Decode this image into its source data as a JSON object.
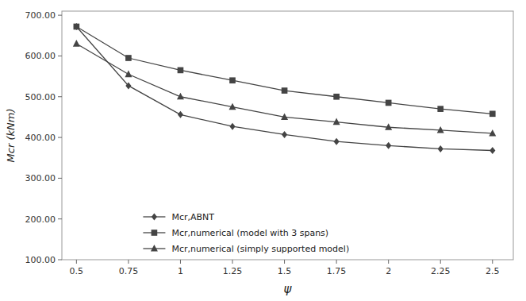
{
  "chart_data": {
    "type": "line",
    "xlabel": "ψ",
    "ylabel": "Mcr (kNm)",
    "x": [
      0.5,
      0.75,
      1.0,
      1.25,
      1.5,
      1.75,
      2.0,
      2.25,
      2.5
    ],
    "series": [
      {
        "name": "Mcr,ABNT",
        "color": "#444444",
        "marker": "diamond",
        "line_style": "solid",
        "values": [
          672,
          527,
          456,
          427,
          407,
          390,
          380,
          372,
          368
        ]
      },
      {
        "name": "Mcr,numerical (model with 3 spans)",
        "color": "#444444",
        "marker": "square",
        "line_style": "solid",
        "values": [
          672,
          595,
          565,
          540,
          515,
          500,
          485,
          470,
          458
        ]
      },
      {
        "name": "Mcr,numerical (simply supported model)",
        "color": "#444444",
        "marker": "triangle",
        "line_style": "solid",
        "values": [
          630,
          555,
          500,
          475,
          450,
          438,
          425,
          418,
          410
        ]
      }
    ],
    "xlim": [
      0.43,
      2.6
    ],
    "ylim": [
      100.0,
      710.0
    ],
    "xticks": [
      0.5,
      0.75,
      1,
      1.25,
      1.5,
      1.75,
      2,
      2.25,
      2.5
    ],
    "yticks": [
      {
        "value": 100,
        "label": "100.00"
      },
      {
        "value": 200,
        "label": "200.00"
      },
      {
        "value": 300,
        "label": "300.00"
      },
      {
        "value": 400,
        "label": "400.00"
      },
      {
        "value": 500,
        "label": "500.00"
      },
      {
        "value": 600,
        "label": "600.00"
      },
      {
        "value": 700,
        "label": "700.00"
      }
    ],
    "grid": false,
    "legend": "lower left"
  }
}
